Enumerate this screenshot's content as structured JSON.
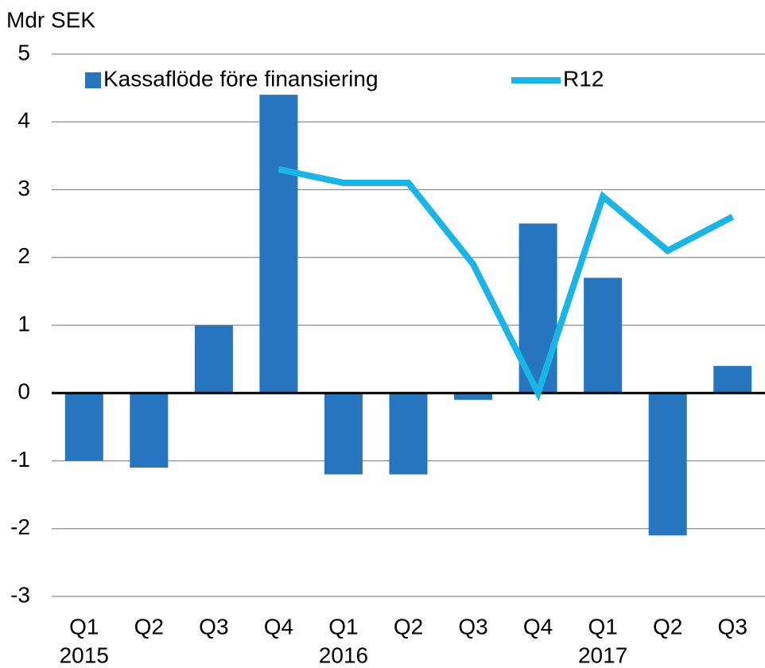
{
  "chart_data": {
    "type": "bar-line",
    "y_axis_label": "Mdr SEK",
    "categories": [
      "Q1",
      "Q2",
      "Q3",
      "Q4",
      "Q1",
      "Q2",
      "Q3",
      "Q4",
      "Q1",
      "Q2",
      "Q3"
    ],
    "years": [
      "2015",
      null,
      null,
      null,
      "2016",
      null,
      null,
      null,
      "2017",
      null,
      null
    ],
    "series": [
      {
        "name": "Kassaflöde före finansiering",
        "type": "bar",
        "color": "#2675be",
        "values": [
          -1,
          -1.1,
          1,
          4.4,
          -1.2,
          -1.2,
          -0.1,
          2.5,
          1.7,
          -2.1,
          0.4
        ]
      },
      {
        "name": "R12",
        "type": "line",
        "color": "#19b5e6",
        "values": [
          null,
          null,
          null,
          3.3,
          3.1,
          3.1,
          1.9,
          0,
          2.9,
          2.1,
          2.6
        ]
      }
    ],
    "ylim": [
      -3,
      5
    ],
    "yticks": [
      -3,
      -2,
      -1,
      0,
      1,
      2,
      3,
      4,
      5
    ],
    "grid": true,
    "legend": "top"
  }
}
